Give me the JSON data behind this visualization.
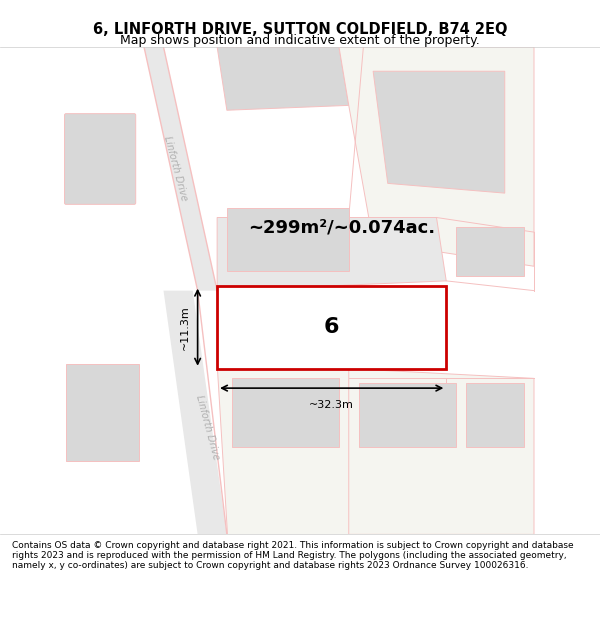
{
  "title": "6, LINFORTH DRIVE, SUTTON COLDFIELD, B74 2EQ",
  "subtitle": "Map shows position and indicative extent of the property.",
  "footer": "Contains OS data © Crown copyright and database right 2021. This information is subject to Crown copyright and database rights 2023 and is reproduced with the permission of HM Land Registry. The polygons (including the associated geometry, namely x, y co-ordinates) are subject to Crown copyright and database rights 2023 Ordnance Survey 100026316.",
  "map_bg": "#f5f5f0",
  "road_color": "#f5c0c0",
  "road_fill": "#f0d0d0",
  "plot_outline": "#cc0000",
  "plot_fill": "#ffffff",
  "building_fill": "#d8d8d8",
  "building_outline": "#c0c0c0",
  "road_label_color": "#aaaaaa",
  "dim_color": "#111111",
  "area_text": "~299m²/~0.074ac.",
  "width_label": "~32.3m",
  "height_label": "~11.3m",
  "plot_number": "6",
  "map_xlim": [
    0,
    1.0
  ],
  "map_ylim": [
    0,
    1.0
  ]
}
